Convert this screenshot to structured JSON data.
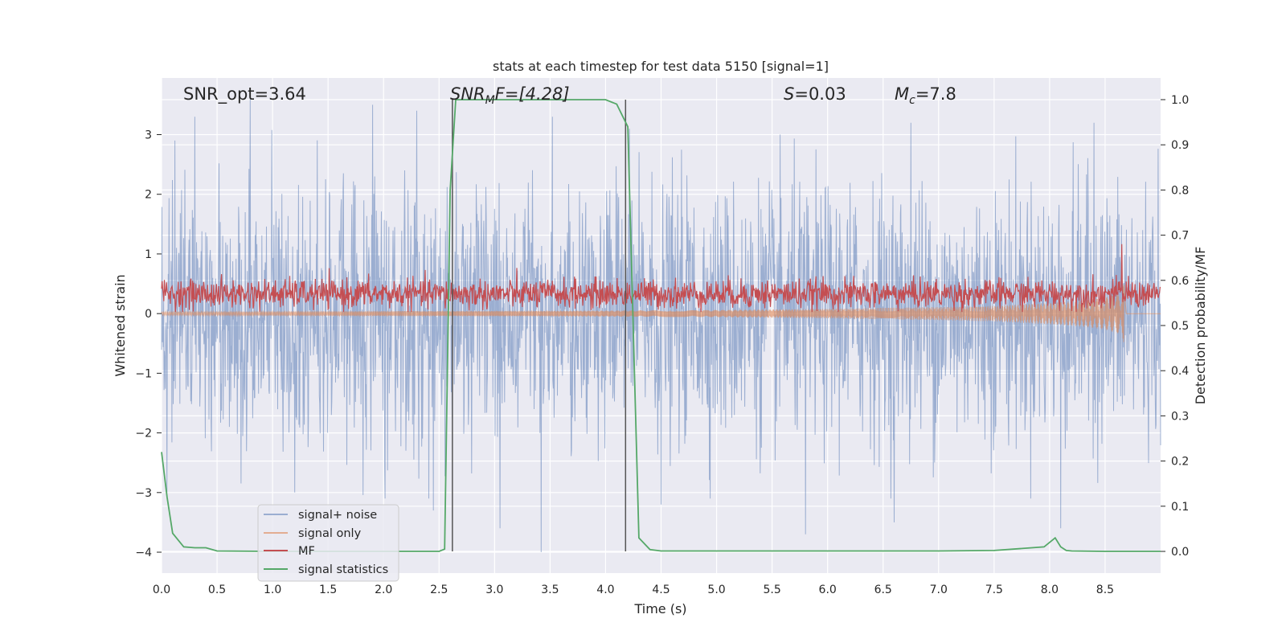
{
  "chart_data": {
    "type": "line",
    "title": "stats at each timestep for test data 5150 [signal=1]",
    "xlabel": "Time (s)",
    "ylabel_left": "Whitened strain",
    "ylabel_right": "Detection probability/MF",
    "xlim": [
      0.0,
      9.0
    ],
    "ylim_left": [
      -4.35,
      3.95
    ],
    "ylim_right": [
      -0.048,
      1.048
    ],
    "x_ticks": [
      "0.0",
      "0.5",
      "1.0",
      "1.5",
      "2.0",
      "2.5",
      "3.0",
      "3.5",
      "4.0",
      "4.5",
      "5.0",
      "5.5",
      "6.0",
      "6.5",
      "7.0",
      "7.5",
      "8.0",
      "8.5"
    ],
    "y_ticks_left": [
      "−4",
      "−3",
      "−2",
      "−1",
      "0",
      "1",
      "2",
      "3"
    ],
    "y_ticks_right": [
      "0.0",
      "0.1",
      "0.2",
      "0.3",
      "0.4",
      "0.5",
      "0.6",
      "0.7",
      "0.8",
      "0.9",
      "1.0"
    ],
    "grid": true,
    "legend_position": "lower-left",
    "annotations": {
      "snr_opt": "SNR_opt=3.64",
      "snr_mf_sym": "SNR",
      "snr_mf_sub": "M",
      "snr_mf_rest": "F=[4.28]",
      "s_sym": "S",
      "s_rest": "=0.03",
      "mc_sym": "M",
      "mc_sub": "c",
      "mc_rest": "=7.8"
    },
    "detection_markers_x": [
      2.62,
      4.18
    ],
    "series": [
      {
        "name": "signal+ noise",
        "color": "#4c72b0",
        "axis": "left",
        "description_level": "noise band approx ±1.5 with peaks to ±3.6",
        "peaks": [
          {
            "x": 0.05,
            "y": -3.0
          },
          {
            "x": 0.12,
            "y": 2.9
          },
          {
            "x": 0.3,
            "y": 3.3
          },
          {
            "x": 0.8,
            "y": 3.6
          },
          {
            "x": 1.2,
            "y": -3.0
          },
          {
            "x": 1.9,
            "y": 3.5
          },
          {
            "x": 2.3,
            "y": 3.4
          },
          {
            "x": 2.45,
            "y": -3.3
          },
          {
            "x": 3.05,
            "y": -3.6
          },
          {
            "x": 3.42,
            "y": -4.0
          },
          {
            "x": 3.52,
            "y": 3.3
          },
          {
            "x": 4.5,
            "y": -3.2
          },
          {
            "x": 5.8,
            "y": -3.7
          },
          {
            "x": 6.6,
            "y": -3.5
          },
          {
            "x": 6.75,
            "y": 3.2
          },
          {
            "x": 8.1,
            "y": -3.6
          },
          {
            "x": 8.4,
            "y": 3.2
          }
        ]
      },
      {
        "name": "signal only",
        "color": "#dd8452",
        "axis": "left",
        "x": [
          0.0,
          1.0,
          2.0,
          3.0,
          4.0,
          5.0,
          6.0,
          7.0,
          7.5,
          8.0,
          8.3,
          8.5,
          8.65,
          8.67
        ],
        "amplitude": [
          0.03,
          0.035,
          0.04,
          0.045,
          0.05,
          0.06,
          0.08,
          0.11,
          0.13,
          0.18,
          0.22,
          0.27,
          0.35,
          0.5
        ]
      },
      {
        "name": "MF",
        "color": "#c44e52",
        "axis": "right",
        "baseline": 0.57,
        "band": [
          0.53,
          0.64
        ],
        "peak": {
          "x": 8.65,
          "y": 0.68
        }
      },
      {
        "name": "signal statistics",
        "color": "#55a868",
        "axis": "right",
        "x": [
          0.0,
          0.05,
          0.1,
          0.2,
          0.3,
          0.4,
          0.5,
          1.0,
          1.5,
          2.0,
          2.5,
          2.55,
          2.6,
          2.65,
          2.7,
          3.0,
          3.5,
          4.0,
          4.1,
          4.2,
          4.3,
          4.4,
          4.5,
          5.0,
          6.0,
          7.0,
          7.5,
          7.95,
          8.0,
          8.05,
          8.1,
          8.15,
          8.2,
          8.5,
          8.7,
          9.0
        ],
        "y": [
          0.22,
          0.12,
          0.04,
          0.01,
          0.008,
          0.008,
          0.001,
          0.0,
          0.0,
          0.0,
          0.0,
          0.005,
          0.8,
          1.0,
          1.0,
          1.0,
          1.0,
          1.0,
          0.99,
          0.94,
          0.03,
          0.004,
          0.001,
          0.001,
          0.001,
          0.001,
          0.002,
          0.01,
          0.02,
          0.03,
          0.01,
          0.002,
          0.001,
          0.0,
          0.0,
          0.0
        ]
      }
    ]
  }
}
